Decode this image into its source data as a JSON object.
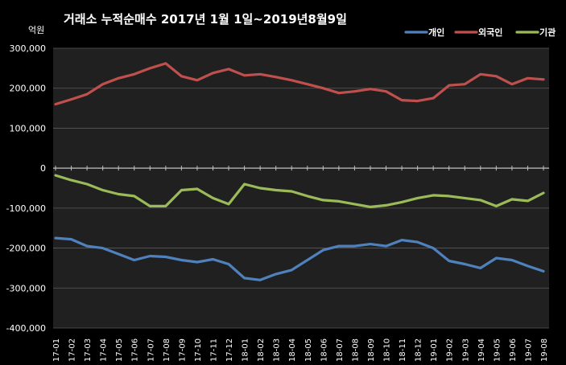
{
  "chart_data": {
    "type": "line",
    "title": "거래소 누적순매수 2017년 1월 1일~2019년8월9일",
    "unit_label": "억원",
    "ylim": [
      -400000,
      300000
    ],
    "yticks": [
      300000,
      200000,
      100000,
      0,
      -100000,
      -200000,
      -300000,
      -400000
    ],
    "ytick_labels": [
      "300,000",
      "200,000",
      "100,000",
      "0",
      "-100,000",
      "-200,000",
      "-300,000",
      "-400,000"
    ],
    "categories": [
      "17-01",
      "17-02",
      "17-03",
      "17-04",
      "17-05",
      "17-06",
      "17-07",
      "17-08",
      "17-09",
      "17-10",
      "17-11",
      "17-12",
      "18-01",
      "18-02",
      "18-03",
      "18-04",
      "18-05",
      "18-06",
      "18-07",
      "18-08",
      "18-09",
      "18-10",
      "18-11",
      "18-12",
      "19-01",
      "19-02",
      "19-03",
      "19-04",
      "19-05",
      "19-06",
      "19-07",
      "19-08"
    ],
    "grid": true,
    "legend_position": "top-right",
    "series": [
      {
        "name": "개인",
        "color": "#4f81bd",
        "values": [
          -175000,
          -178000,
          -195000,
          -200000,
          -215000,
          -230000,
          -220000,
          -222000,
          -230000,
          -235000,
          -228000,
          -240000,
          -275000,
          -280000,
          -265000,
          -255000,
          -230000,
          -205000,
          -195000,
          -195000,
          -190000,
          -195000,
          -180000,
          -185000,
          -200000,
          -232000,
          -240000,
          -250000,
          -225000,
          -230000,
          -245000,
          -258000
        ]
      },
      {
        "name": "외국인",
        "color": "#c0504d",
        "values": [
          160000,
          172000,
          185000,
          210000,
          225000,
          235000,
          250000,
          262000,
          230000,
          220000,
          238000,
          248000,
          232000,
          235000,
          228000,
          220000,
          210000,
          200000,
          188000,
          192000,
          198000,
          192000,
          170000,
          168000,
          175000,
          207000,
          210000,
          235000,
          230000,
          210000,
          225000,
          222000
        ]
      },
      {
        "name": "기관",
        "color": "#9bbb59",
        "values": [
          -18000,
          -30000,
          -40000,
          -55000,
          -65000,
          -70000,
          -95000,
          -95000,
          -55000,
          -52000,
          -75000,
          -90000,
          -40000,
          -50000,
          -55000,
          -58000,
          -70000,
          -80000,
          -83000,
          -90000,
          -97000,
          -93000,
          -85000,
          -75000,
          -68000,
          -70000,
          -75000,
          -80000,
          -95000,
          -78000,
          -82000,
          -62000
        ]
      }
    ]
  }
}
